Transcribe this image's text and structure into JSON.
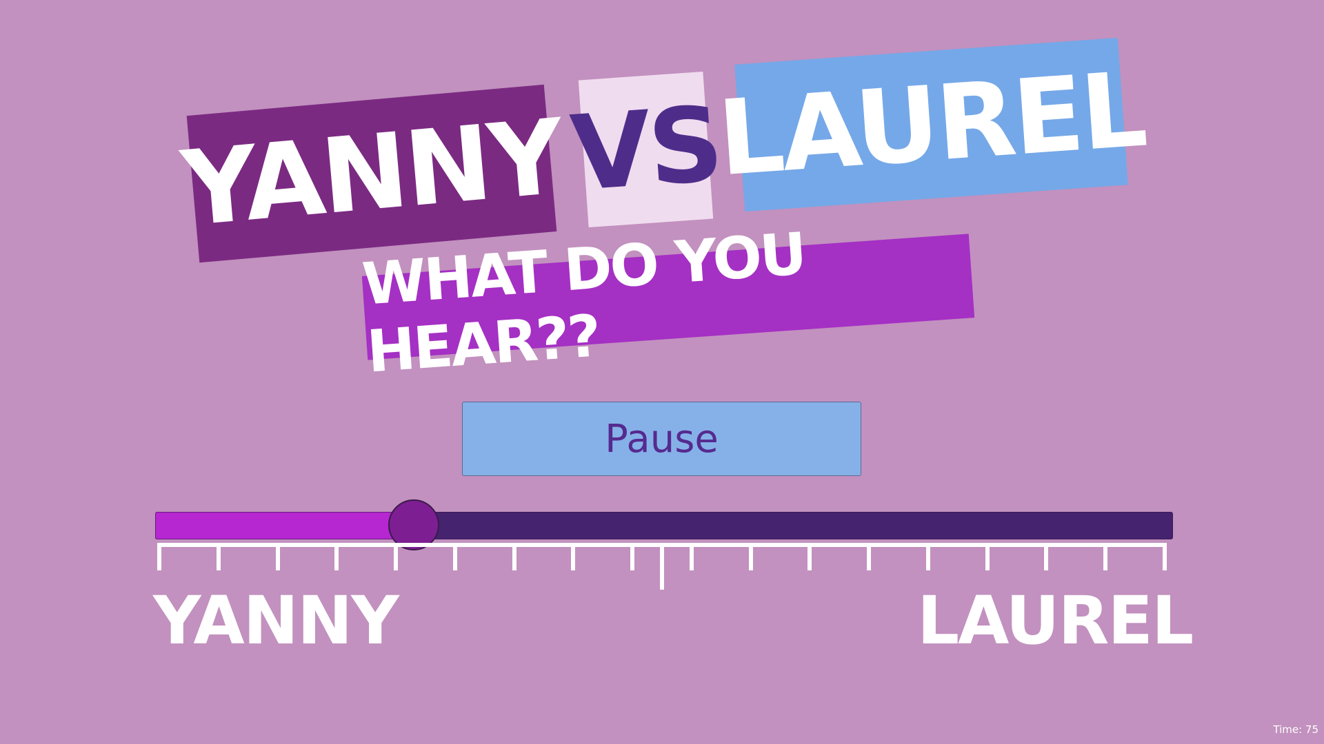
{
  "header": {
    "title_left": "YANNY",
    "title_vs": "VS",
    "title_right": "LAUREL",
    "subtitle": "WHAT DO YOU HEAR??"
  },
  "controls": {
    "pause_label": "Pause"
  },
  "slider": {
    "value": 0.254,
    "tick_count": 18,
    "label_left": "YANNY",
    "label_right": "LAUREL"
  },
  "status": {
    "time": "Time: 75"
  },
  "colors": {
    "background": "#c291bf",
    "fill": "#b627d1",
    "track": "#45236e",
    "thumb": "#7d1f92"
  }
}
